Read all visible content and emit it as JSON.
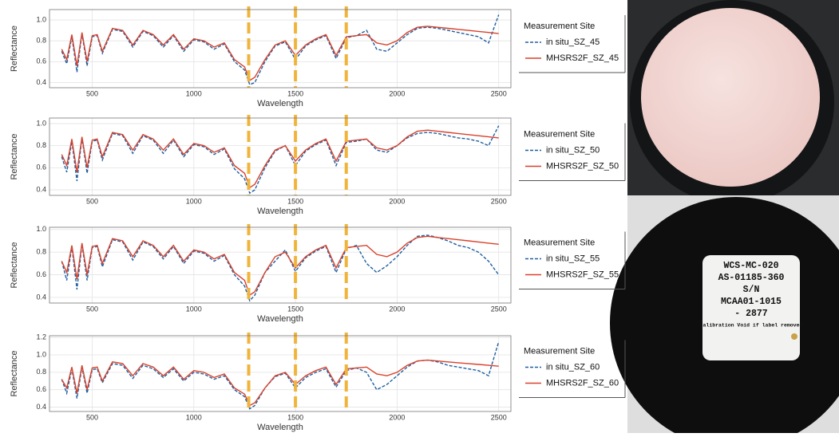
{
  "chart_data": [
    {
      "type": "line",
      "x_label": "Wavelength",
      "y_label": "Reflectance",
      "legend_title": "Measurement Site",
      "grid": true,
      "x": [
        350,
        375,
        400,
        425,
        450,
        475,
        500,
        525,
        550,
        600,
        650,
        700,
        750,
        800,
        850,
        900,
        950,
        1000,
        1050,
        1100,
        1150,
        1200,
        1250,
        1275,
        1300,
        1350,
        1400,
        1450,
        1500,
        1550,
        1600,
        1650,
        1700,
        1750,
        1800,
        1850,
        1900,
        1950,
        2000,
        2050,
        2100,
        2150,
        2200,
        2250,
        2300,
        2350,
        2400,
        2450,
        2500
      ],
      "xlim": [
        290,
        2560
      ],
      "xticks": [
        500,
        1000,
        1500,
        2000,
        2500
      ],
      "ylim": [
        0.35,
        1.1
      ],
      "yticks": [
        0.4,
        0.6,
        0.8,
        {
          "value": 1,
          "label": "1.0"
        }
      ],
      "vlines": {
        "values": [
          1270,
          1500,
          1750
        ],
        "color": "#f0b43c"
      },
      "series": [
        {
          "name": "in situ_SZ_45",
          "color": "#1f5fa0",
          "dash": "dashed",
          "values": [
            0.7,
            0.58,
            0.84,
            0.5,
            0.87,
            0.56,
            0.84,
            0.85,
            0.68,
            0.91,
            0.89,
            0.74,
            0.89,
            0.85,
            0.74,
            0.85,
            0.7,
            0.81,
            0.79,
            0.72,
            0.77,
            0.6,
            0.52,
            0.38,
            0.4,
            0.6,
            0.75,
            0.79,
            0.62,
            0.75,
            0.81,
            0.85,
            0.63,
            0.83,
            0.85,
            0.9,
            0.72,
            0.7,
            0.78,
            0.86,
            0.92,
            0.93,
            0.92,
            0.9,
            0.88,
            0.86,
            0.84,
            0.78,
            1.05
          ]
        },
        {
          "name": "MHSRS2F_SZ_45",
          "color": "#d9412b",
          "dash": "solid",
          "values": [
            0.72,
            0.62,
            0.86,
            0.56,
            0.88,
            0.6,
            0.85,
            0.86,
            0.7,
            0.92,
            0.9,
            0.76,
            0.9,
            0.86,
            0.76,
            0.86,
            0.72,
            0.82,
            0.8,
            0.74,
            0.78,
            0.62,
            0.55,
            0.42,
            0.45,
            0.62,
            0.76,
            0.8,
            0.66,
            0.76,
            0.82,
            0.86,
            0.66,
            0.84,
            0.85,
            0.86,
            0.78,
            0.76,
            0.8,
            0.88,
            0.93,
            0.94,
            0.93,
            0.92,
            0.91,
            0.9,
            0.89,
            0.88,
            0.87
          ]
        }
      ]
    },
    {
      "type": "line",
      "x_label": "Wavelength",
      "y_label": "Reflectance",
      "legend_title": "Measurement Site",
      "grid": true,
      "x": [
        350,
        375,
        400,
        425,
        450,
        475,
        500,
        525,
        550,
        600,
        650,
        700,
        750,
        800,
        850,
        900,
        950,
        1000,
        1050,
        1100,
        1150,
        1200,
        1250,
        1275,
        1300,
        1350,
        1400,
        1450,
        1500,
        1550,
        1600,
        1650,
        1700,
        1750,
        1800,
        1850,
        1900,
        1950,
        2000,
        2050,
        2100,
        2150,
        2200,
        2250,
        2300,
        2350,
        2400,
        2450,
        2500
      ],
      "xlim": [
        290,
        2560
      ],
      "xticks": [
        500,
        1000,
        1500,
        2000,
        2500
      ],
      "ylim": [
        0.35,
        1.05
      ],
      "yticks": [
        0.4,
        0.6,
        0.8,
        {
          "value": 1,
          "label": "1.0"
        }
      ],
      "vlines": {
        "values": [
          1270,
          1500,
          1750
        ],
        "color": "#f0b43c"
      },
      "series": [
        {
          "name": "in situ_SZ_50",
          "color": "#1f5fa0",
          "dash": "dashed",
          "values": [
            0.7,
            0.56,
            0.84,
            0.48,
            0.87,
            0.55,
            0.84,
            0.85,
            0.67,
            0.91,
            0.89,
            0.73,
            0.89,
            0.85,
            0.73,
            0.85,
            0.7,
            0.81,
            0.79,
            0.72,
            0.77,
            0.59,
            0.5,
            0.37,
            0.4,
            0.6,
            0.75,
            0.8,
            0.62,
            0.75,
            0.81,
            0.85,
            0.62,
            0.83,
            0.84,
            0.86,
            0.76,
            0.74,
            0.8,
            0.87,
            0.91,
            0.92,
            0.91,
            0.89,
            0.87,
            0.86,
            0.84,
            0.8,
            0.98
          ]
        },
        {
          "name": "MHSRS2F_SZ_50",
          "color": "#d9412b",
          "dash": "solid",
          "values": [
            0.72,
            0.62,
            0.86,
            0.56,
            0.88,
            0.6,
            0.85,
            0.86,
            0.7,
            0.92,
            0.9,
            0.76,
            0.9,
            0.86,
            0.76,
            0.86,
            0.72,
            0.82,
            0.8,
            0.74,
            0.78,
            0.62,
            0.55,
            0.42,
            0.45,
            0.62,
            0.76,
            0.8,
            0.66,
            0.76,
            0.82,
            0.86,
            0.66,
            0.84,
            0.85,
            0.86,
            0.78,
            0.76,
            0.8,
            0.88,
            0.93,
            0.94,
            0.93,
            0.92,
            0.91,
            0.9,
            0.89,
            0.88,
            0.87
          ]
        }
      ]
    },
    {
      "type": "line",
      "x_label": "Wavelength",
      "y_label": "Reflectance",
      "legend_title": "Measurement Site",
      "grid": true,
      "x": [
        350,
        375,
        400,
        425,
        450,
        475,
        500,
        525,
        550,
        600,
        650,
        700,
        750,
        800,
        850,
        900,
        950,
        1000,
        1050,
        1100,
        1150,
        1200,
        1250,
        1275,
        1300,
        1350,
        1400,
        1450,
        1500,
        1550,
        1600,
        1650,
        1700,
        1750,
        1800,
        1850,
        1900,
        1950,
        2000,
        2050,
        2100,
        2150,
        2200,
        2250,
        2300,
        2350,
        2400,
        2450,
        2500
      ],
      "xlim": [
        290,
        2560
      ],
      "xticks": [
        500,
        1000,
        1500,
        2000,
        2500
      ],
      "ylim": [
        0.35,
        1.02
      ],
      "yticks": [
        0.4,
        0.6,
        0.8,
        {
          "value": 1,
          "label": "1.0"
        }
      ],
      "vlines": {
        "values": [
          1270,
          1500,
          1750
        ],
        "color": "#f0b43c"
      },
      "series": [
        {
          "name": "in situ_SZ_55",
          "color": "#1f5fa0",
          "dash": "dashed",
          "values": [
            0.72,
            0.55,
            0.85,
            0.47,
            0.87,
            0.55,
            0.84,
            0.85,
            0.67,
            0.91,
            0.89,
            0.73,
            0.89,
            0.85,
            0.74,
            0.85,
            0.7,
            0.81,
            0.79,
            0.72,
            0.77,
            0.6,
            0.5,
            0.37,
            0.42,
            0.62,
            0.72,
            0.82,
            0.63,
            0.75,
            0.81,
            0.85,
            0.62,
            0.83,
            0.86,
            0.7,
            0.62,
            0.68,
            0.76,
            0.86,
            0.94,
            0.95,
            0.93,
            0.9,
            0.86,
            0.84,
            0.8,
            0.72,
            0.6
          ]
        },
        {
          "name": "MHSRS2F_SZ_55",
          "color": "#d9412b",
          "dash": "solid",
          "values": [
            0.72,
            0.62,
            0.86,
            0.56,
            0.88,
            0.6,
            0.85,
            0.86,
            0.7,
            0.92,
            0.9,
            0.76,
            0.9,
            0.86,
            0.76,
            0.86,
            0.72,
            0.82,
            0.8,
            0.74,
            0.78,
            0.62,
            0.55,
            0.42,
            0.45,
            0.62,
            0.76,
            0.8,
            0.66,
            0.76,
            0.82,
            0.86,
            0.66,
            0.84,
            0.85,
            0.86,
            0.78,
            0.76,
            0.8,
            0.88,
            0.93,
            0.94,
            0.93,
            0.92,
            0.91,
            0.9,
            0.89,
            0.88,
            0.87
          ]
        }
      ]
    },
    {
      "type": "line",
      "x_label": "Wavelength",
      "y_label": "Reflectance",
      "legend_title": "Measurement Site",
      "grid": true,
      "x": [
        350,
        375,
        400,
        425,
        450,
        475,
        500,
        525,
        550,
        600,
        650,
        700,
        750,
        800,
        850,
        900,
        950,
        1000,
        1050,
        1100,
        1150,
        1200,
        1250,
        1275,
        1300,
        1350,
        1400,
        1450,
        1500,
        1550,
        1600,
        1650,
        1700,
        1750,
        1800,
        1850,
        1900,
        1950,
        2000,
        2050,
        2100,
        2150,
        2200,
        2250,
        2300,
        2350,
        2400,
        2450,
        2500
      ],
      "xlim": [
        290,
        2560
      ],
      "xticks": [
        500,
        1000,
        1500,
        2000,
        2500
      ],
      "ylim": [
        0.35,
        1.22
      ],
      "yticks": [
        0.4,
        0.6,
        0.8,
        {
          "value": 1,
          "label": "1.0"
        },
        1.2
      ],
      "vlines": {
        "values": [
          1270,
          1500,
          1750
        ],
        "color": "#f0b43c"
      },
      "series": [
        {
          "name": "in situ_SZ_60",
          "color": "#1f5fa0",
          "dash": "dashed",
          "values": [
            0.72,
            0.56,
            0.84,
            0.5,
            0.86,
            0.56,
            0.83,
            0.84,
            0.68,
            0.9,
            0.88,
            0.73,
            0.88,
            0.84,
            0.74,
            0.84,
            0.7,
            0.8,
            0.78,
            0.72,
            0.76,
            0.6,
            0.52,
            0.38,
            0.42,
            0.62,
            0.75,
            0.79,
            0.62,
            0.74,
            0.8,
            0.84,
            0.63,
            0.82,
            0.85,
            0.8,
            0.6,
            0.66,
            0.76,
            0.86,
            0.93,
            0.94,
            0.92,
            0.88,
            0.86,
            0.84,
            0.82,
            0.76,
            1.15
          ]
        },
        {
          "name": "MHSRS2F_SZ_60",
          "color": "#d9412b",
          "dash": "solid",
          "values": [
            0.72,
            0.62,
            0.86,
            0.56,
            0.88,
            0.6,
            0.85,
            0.86,
            0.7,
            0.92,
            0.9,
            0.76,
            0.9,
            0.86,
            0.76,
            0.86,
            0.72,
            0.82,
            0.8,
            0.74,
            0.78,
            0.62,
            0.55,
            0.42,
            0.45,
            0.62,
            0.76,
            0.8,
            0.66,
            0.76,
            0.82,
            0.86,
            0.66,
            0.84,
            0.85,
            0.86,
            0.78,
            0.76,
            0.8,
            0.88,
            0.93,
            0.94,
            0.93,
            0.92,
            0.91,
            0.9,
            0.89,
            0.88,
            0.87
          ]
        }
      ]
    }
  ],
  "photo_label": {
    "lines": [
      "WCS-MC-020",
      "AS-01185-360",
      "S/N",
      "MCAA01-1015",
      "- 2877",
      "Calibration Void if label removed"
    ]
  }
}
